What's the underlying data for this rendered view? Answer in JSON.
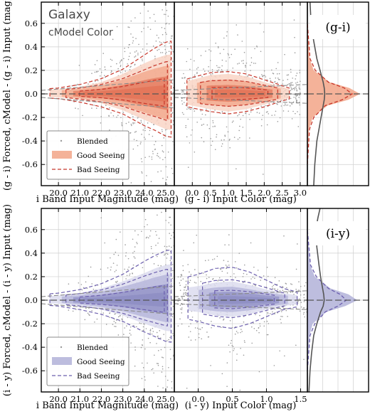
{
  "figure": {
    "corner_label_1": "Galaxy",
    "corner_label_2": "cModel Color"
  },
  "chart_data": [
    {
      "type": "scatter",
      "panel": "top-left",
      "xlabel": "i Band Input Magnitude (mag)",
      "ylabel": "(g - i) Forced, cModel - (g - i) Input (mag)",
      "xticks": [
        "20.0",
        "21.0",
        "22.0",
        "23.0",
        "24.0",
        "25.0"
      ],
      "yticks": [
        "0.6",
        "0.4",
        "0.2",
        "0.0",
        "-0.2",
        "-0.4",
        "-0.6"
      ],
      "xlim": [
        19.2,
        25.4
      ],
      "ylim": [
        -0.78,
        0.78
      ],
      "grid": true,
      "legend_placement": "lower-left",
      "series": [
        {
          "name": "Blended",
          "style": "points",
          "color": "#9a9a9a"
        },
        {
          "name": "Good Seeing",
          "style": "filled contours",
          "color": "#f08a6e",
          "x": [
            20.0,
            21.0,
            22.0,
            23.0,
            24.0,
            24.5,
            25.0
          ],
          "upper_90": [
            0.04,
            0.06,
            0.1,
            0.17,
            0.26,
            0.3,
            0.33
          ],
          "lower_90": [
            -0.03,
            -0.05,
            -0.08,
            -0.14,
            -0.22,
            -0.26,
            -0.3
          ]
        },
        {
          "name": "Bad Seeing",
          "style": "dashed contours",
          "color": "#d03a2e",
          "x": [
            20.0,
            21.0,
            22.0,
            23.0,
            24.0,
            24.5,
            25.0
          ],
          "upper_90": [
            0.05,
            0.08,
            0.13,
            0.21,
            0.33,
            0.39,
            0.44
          ],
          "lower_90": [
            -0.04,
            -0.07,
            -0.11,
            -0.17,
            -0.27,
            -0.31,
            -0.36
          ]
        }
      ]
    },
    {
      "type": "scatter",
      "panel": "top-middle",
      "xlabel": "(g - i) Input Color (mag)",
      "xticks": [
        "0.0",
        "0.5",
        "1.0",
        "1.5",
        "2.0",
        "2.5",
        "3.0"
      ],
      "xlim": [
        -0.5,
        3.2
      ],
      "ylim": [
        -0.78,
        0.78
      ],
      "grid": true,
      "series": [
        {
          "name": "Good Seeing",
          "style": "filled contours",
          "color": "#f08a6e",
          "x": [
            0.0,
            0.5,
            1.0,
            1.5,
            2.0,
            2.5
          ],
          "upper_90": [
            0.12,
            0.16,
            0.17,
            0.15,
            0.1,
            0.06
          ],
          "lower_90": [
            -0.1,
            -0.13,
            -0.15,
            -0.13,
            -0.09,
            -0.05
          ]
        },
        {
          "name": "Bad Seeing",
          "style": "dashed contours",
          "color": "#d03a2e",
          "x": [
            0.0,
            0.5,
            1.0,
            1.5,
            2.0,
            2.5
          ],
          "upper_90": [
            0.14,
            0.18,
            0.19,
            0.17,
            0.12,
            0.07
          ],
          "lower_90": [
            -0.12,
            -0.15,
            -0.17,
            -0.15,
            -0.11,
            -0.06
          ]
        }
      ]
    },
    {
      "type": "area",
      "panel": "top-right",
      "label": "(g-i)",
      "ylim": [
        -0.78,
        0.78
      ],
      "series": [
        {
          "name": "Good Seeing",
          "color": "#f08a6e",
          "y": [
            -0.6,
            -0.3,
            -0.2,
            -0.1,
            -0.05,
            0.0,
            0.05,
            0.1,
            0.2,
            0.3,
            0.6
          ],
          "density": [
            0.0,
            0.03,
            0.1,
            0.38,
            0.78,
            1.0,
            0.8,
            0.42,
            0.12,
            0.04,
            0.0
          ]
        },
        {
          "name": "Bad Seeing",
          "color": "#d03a2e",
          "y": [
            -0.6,
            -0.3,
            -0.2,
            -0.1,
            -0.05,
            0.0,
            0.05,
            0.1,
            0.2,
            0.3,
            0.6
          ],
          "density": [
            0.0,
            0.04,
            0.12,
            0.34,
            0.66,
            0.85,
            0.7,
            0.4,
            0.15,
            0.05,
            0.0
          ]
        },
        {
          "name": "Blended",
          "color": "#555555",
          "y": [
            -0.78,
            -0.6,
            -0.4,
            -0.3,
            -0.2,
            -0.1,
            -0.05,
            0.0,
            0.05,
            0.1,
            0.2,
            0.3,
            0.45,
            0.6,
            0.78
          ],
          "density": [
            0.12,
            0.14,
            0.18,
            0.22,
            0.26,
            0.3,
            0.32,
            0.33,
            0.32,
            0.3,
            0.24,
            0.18,
            0.12,
            0.07,
            0.05
          ]
        }
      ]
    },
    {
      "type": "scatter",
      "panel": "bottom-left",
      "xlabel": "i Band Input Magnitude (mag)",
      "ylabel": "(i - y) Forced, cModel - (i - y) Input (mag)",
      "xticks": [
        "20.0",
        "21.0",
        "22.0",
        "23.0",
        "24.0",
        "25.0"
      ],
      "yticks": [
        "0.6",
        "0.4",
        "0.2",
        "0.0",
        "-0.2",
        "-0.4",
        "-0.6"
      ],
      "xlim": [
        19.2,
        25.4
      ],
      "ylim": [
        -0.78,
        0.78
      ],
      "grid": true,
      "legend_placement": "lower-left",
      "series": [
        {
          "name": "Blended",
          "style": "points",
          "color": "#9a9a9a"
        },
        {
          "name": "Good Seeing",
          "style": "filled contours",
          "color": "#8f8fc8",
          "x": [
            20.0,
            21.0,
            22.0,
            23.0,
            24.0,
            24.5,
            25.0
          ],
          "upper_90": [
            0.04,
            0.06,
            0.1,
            0.16,
            0.23,
            0.27,
            0.3
          ],
          "lower_90": [
            -0.03,
            -0.05,
            -0.08,
            -0.13,
            -0.2,
            -0.23,
            -0.26
          ]
        },
        {
          "name": "Bad Seeing",
          "style": "dashed contours",
          "color": "#5a4f9e",
          "x": [
            20.0,
            21.0,
            22.0,
            23.0,
            24.0,
            24.5,
            25.0
          ],
          "upper_90": [
            0.06,
            0.09,
            0.14,
            0.22,
            0.33,
            0.38,
            0.42
          ],
          "lower_90": [
            -0.05,
            -0.08,
            -0.12,
            -0.18,
            -0.27,
            -0.31,
            -0.35
          ]
        }
      ]
    },
    {
      "type": "scatter",
      "panel": "bottom-middle",
      "xlabel": "(i - y) Input Color (mag)",
      "xticks": [
        "0.0",
        "0.5",
        "1.0",
        "1.5"
      ],
      "xlim": [
        -0.35,
        1.6
      ],
      "ylim": [
        -0.78,
        0.78
      ],
      "grid": true,
      "series": [
        {
          "name": "Good Seeing",
          "style": "filled contours",
          "color": "#8f8fc8",
          "x": [
            0.0,
            0.25,
            0.5,
            0.75,
            1.0,
            1.25
          ],
          "upper_90": [
            0.12,
            0.15,
            0.16,
            0.13,
            0.09,
            0.06
          ],
          "lower_90": [
            -0.1,
            -0.13,
            -0.14,
            -0.12,
            -0.08,
            -0.05
          ]
        },
        {
          "name": "Bad Seeing",
          "style": "dashed contours",
          "color": "#5a4f9e",
          "x": [
            0.0,
            0.25,
            0.5,
            0.75,
            1.0,
            1.25
          ],
          "upper_90": [
            0.22,
            0.27,
            0.28,
            0.24,
            0.17,
            0.1
          ],
          "lower_90": [
            -0.18,
            -0.22,
            -0.24,
            -0.2,
            -0.14,
            -0.08
          ]
        }
      ]
    },
    {
      "type": "area",
      "panel": "bottom-right",
      "label": "(i-y)",
      "ylim": [
        -0.78,
        0.78
      ],
      "series": [
        {
          "name": "Good Seeing",
          "color": "#8f8fc8",
          "y": [
            -0.6,
            -0.3,
            -0.2,
            -0.1,
            -0.05,
            0.0,
            0.05,
            0.1,
            0.2,
            0.3,
            0.6
          ],
          "density": [
            0.0,
            0.04,
            0.1,
            0.36,
            0.72,
            0.95,
            0.78,
            0.44,
            0.14,
            0.05,
            0.0
          ]
        },
        {
          "name": "Bad Seeing",
          "color": "#5a4f9e",
          "y": [
            -0.6,
            -0.3,
            -0.2,
            -0.1,
            -0.05,
            0.0,
            0.05,
            0.1,
            0.2,
            0.3,
            0.6
          ],
          "density": [
            0.0,
            0.05,
            0.14,
            0.34,
            0.58,
            0.74,
            0.62,
            0.4,
            0.17,
            0.06,
            0.0
          ]
        },
        {
          "name": "Blended",
          "color": "#555555",
          "y": [
            -0.78,
            -0.6,
            -0.45,
            -0.3,
            -0.2,
            -0.1,
            -0.05,
            0.0,
            0.05,
            0.1,
            0.2,
            0.3,
            0.45,
            0.6,
            0.7,
            0.78
          ],
          "density": [
            0.03,
            0.05,
            0.08,
            0.12,
            0.18,
            0.25,
            0.3,
            0.32,
            0.31,
            0.29,
            0.25,
            0.22,
            0.18,
            0.16,
            0.2,
            0.24
          ]
        }
      ]
    }
  ],
  "legend": {
    "items": [
      "Blended",
      "Good Seeing",
      "Bad Seeing"
    ]
  },
  "right_labels": [
    "(g-i)",
    "(i-y)"
  ],
  "colors": {
    "top_fill_light": "#f9d5c6",
    "top_fill_mid": "#f2a487",
    "top_fill_dark": "#e06a4e",
    "top_dash": "#c8362a",
    "bottom_fill_light": "#dcdcef",
    "bottom_fill_mid": "#b1b1d8",
    "bottom_fill_dark": "#8686c0",
    "bottom_dash": "#6c5fae",
    "grid": "#cfcfcf",
    "points": "#9a9a9a"
  }
}
